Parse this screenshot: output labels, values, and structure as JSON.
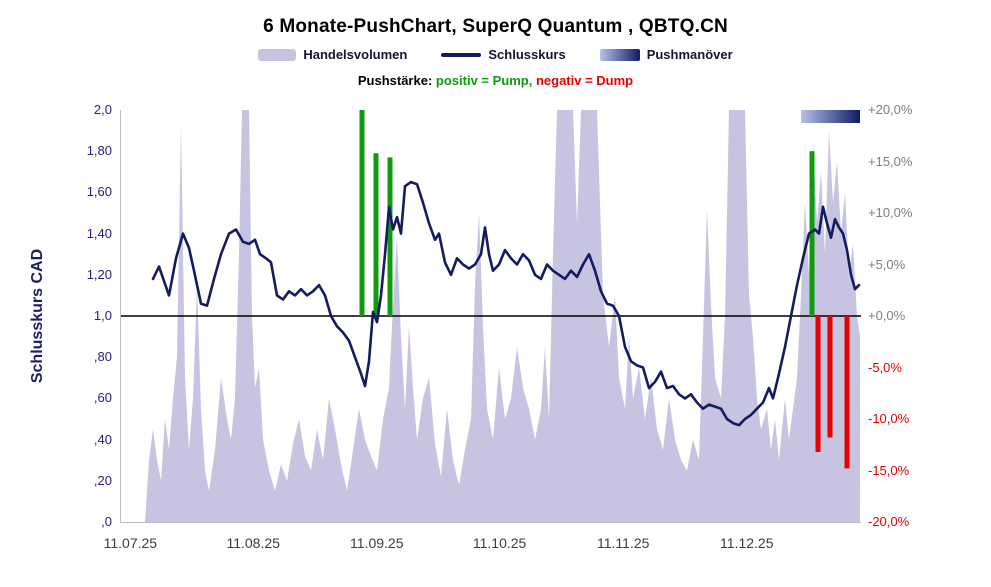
{
  "title": "6 Monate-PushChart, SuperQ Quantum , QBTQ.CN",
  "legend": {
    "volume_label": "Handelsvolumen",
    "close_label": "Schlusskurs",
    "push_label": "Pushmanöver",
    "pushstrength_label": "Pushstärke:",
    "pump_label": "positiv = Pump,",
    "dump_label": "negativ = Dump"
  },
  "chart_data": {
    "type": "area",
    "title": "6 Monate-PushChart, SuperQ Quantum , QBTQ.CN",
    "baseline": 1.0,
    "left_axis": {
      "title": "Schlusskurs CAD",
      "min": 0,
      "max": 2,
      "ticks": [
        "2,0",
        "1,80",
        "1,60",
        "1,40",
        "1,20",
        "1,0",
        ",80",
        ",60",
        ",40",
        ",20",
        ",0"
      ]
    },
    "right_axis": {
      "min": -20,
      "max": 20,
      "ticks": [
        "+20,0%",
        "+15,0%",
        "+10,0%",
        "+5,0%",
        "+0,0%",
        "-5,0%",
        "-10,0%",
        "-15,0%",
        "-20,0%"
      ]
    },
    "x_axis": {
      "ticks": [
        "11.07.25",
        "11.08.25",
        "11.09.25",
        "11.10.25",
        "11.11.25",
        "11.12.25"
      ],
      "positions": [
        0.014,
        0.18,
        0.347,
        0.513,
        0.68,
        0.847
      ]
    },
    "series": {
      "volume": {
        "name": "Handelsvolumen",
        "type": "area",
        "color": "#c6c4e1",
        "points": [
          [
            24,
            0
          ],
          [
            28,
            0.3
          ],
          [
            32,
            0.45
          ],
          [
            36,
            0.3
          ],
          [
            40,
            0.2
          ],
          [
            44,
            0.5
          ],
          [
            48,
            0.35
          ],
          [
            52,
            0.6
          ],
          [
            56,
            0.8
          ],
          [
            60,
            1.93
          ],
          [
            64,
            0.7
          ],
          [
            68,
            0.35
          ],
          [
            72,
            0.6
          ],
          [
            76,
            1.15
          ],
          [
            80,
            0.55
          ],
          [
            84,
            0.25
          ],
          [
            88,
            0.15
          ],
          [
            94,
            0.35
          ],
          [
            100,
            0.7
          ],
          [
            106,
            0.5
          ],
          [
            110,
            0.4
          ],
          [
            114,
            0.6
          ],
          [
            118,
            1.3
          ],
          [
            121,
            2
          ],
          [
            128,
            2
          ],
          [
            131,
            1
          ],
          [
            134,
            0.65
          ],
          [
            138,
            0.75
          ],
          [
            142,
            0.4
          ],
          [
            148,
            0.25
          ],
          [
            154,
            0.15
          ],
          [
            160,
            0.28
          ],
          [
            166,
            0.2
          ],
          [
            172,
            0.38
          ],
          [
            178,
            0.5
          ],
          [
            184,
            0.32
          ],
          [
            190,
            0.25
          ],
          [
            196,
            0.45
          ],
          [
            202,
            0.3
          ],
          [
            208,
            0.6
          ],
          [
            214,
            0.45
          ],
          [
            220,
            0.28
          ],
          [
            226,
            0.15
          ],
          [
            232,
            0.35
          ],
          [
            238,
            0.55
          ],
          [
            244,
            0.4
          ],
          [
            250,
            0.32
          ],
          [
            256,
            0.25
          ],
          [
            262,
            0.5
          ],
          [
            268,
            0.65
          ],
          [
            272,
            1.05
          ],
          [
            276,
            1.38
          ],
          [
            280,
            0.9
          ],
          [
            284,
            0.55
          ],
          [
            288,
            0.95
          ],
          [
            292,
            0.65
          ],
          [
            296,
            0.4
          ],
          [
            302,
            0.6
          ],
          [
            308,
            0.7
          ],
          [
            314,
            0.38
          ],
          [
            320,
            0.22
          ],
          [
            326,
            0.55
          ],
          [
            332,
            0.3
          ],
          [
            338,
            0.18
          ],
          [
            344,
            0.35
          ],
          [
            350,
            0.5
          ],
          [
            354,
            1.15
          ],
          [
            358,
            1.5
          ],
          [
            362,
            0.95
          ],
          [
            366,
            0.55
          ],
          [
            372,
            0.4
          ],
          [
            378,
            0.75
          ],
          [
            384,
            0.5
          ],
          [
            390,
            0.6
          ],
          [
            396,
            0.85
          ],
          [
            402,
            0.65
          ],
          [
            408,
            0.55
          ],
          [
            414,
            0.4
          ],
          [
            420,
            0.55
          ],
          [
            424,
            0.85
          ],
          [
            428,
            0.5
          ],
          [
            432,
            1.3
          ],
          [
            436,
            2
          ],
          [
            452,
            2
          ],
          [
            456,
            1.45
          ],
          [
            460,
            2
          ],
          [
            476,
            2
          ],
          [
            482,
            1.1
          ],
          [
            488,
            0.85
          ],
          [
            494,
            1.1
          ],
          [
            498,
            0.7
          ],
          [
            504,
            0.55
          ],
          [
            508,
            0.9
          ],
          [
            512,
            0.6
          ],
          [
            518,
            0.75
          ],
          [
            524,
            0.5
          ],
          [
            530,
            0.7
          ],
          [
            536,
            0.45
          ],
          [
            542,
            0.35
          ],
          [
            548,
            0.6
          ],
          [
            554,
            0.4
          ],
          [
            560,
            0.3
          ],
          [
            566,
            0.25
          ],
          [
            572,
            0.4
          ],
          [
            578,
            0.3
          ],
          [
            582,
            0.9
          ],
          [
            586,
            1.52
          ],
          [
            590,
            1.05
          ],
          [
            594,
            0.7
          ],
          [
            600,
            0.6
          ],
          [
            604,
            1
          ],
          [
            608,
            2
          ],
          [
            624,
            2
          ],
          [
            628,
            1.1
          ],
          [
            632,
            0.9
          ],
          [
            636,
            0.6
          ],
          [
            640,
            0.45
          ],
          [
            646,
            0.55
          ],
          [
            650,
            0.35
          ],
          [
            654,
            0.5
          ],
          [
            658,
            0.3
          ],
          [
            664,
            0.6
          ],
          [
            668,
            0.4
          ],
          [
            672,
            0.55
          ],
          [
            676,
            0.7
          ],
          [
            680,
            1.1
          ],
          [
            684,
            1.55
          ],
          [
            688,
            1.2
          ],
          [
            692,
            1.85
          ],
          [
            696,
            1.45
          ],
          [
            700,
            1.7
          ],
          [
            704,
            1.3
          ],
          [
            708,
            1.9
          ],
          [
            712,
            1.55
          ],
          [
            716,
            1.75
          ],
          [
            720,
            1.4
          ],
          [
            724,
            1.6
          ],
          [
            728,
            1.2
          ],
          [
            732,
            1.35
          ],
          [
            736,
            1
          ],
          [
            739,
            0.9
          ]
        ]
      },
      "close": {
        "name": "Schlusskurs",
        "type": "line",
        "color": "#141b5e",
        "points": [
          [
            32,
            1.18
          ],
          [
            38,
            1.24
          ],
          [
            43,
            1.17
          ],
          [
            48,
            1.1
          ],
          [
            55,
            1.28
          ],
          [
            62,
            1.4
          ],
          [
            68,
            1.33
          ],
          [
            73,
            1.22
          ],
          [
            80,
            1.06
          ],
          [
            86,
            1.05
          ],
          [
            93,
            1.18
          ],
          [
            100,
            1.3
          ],
          [
            108,
            1.4
          ],
          [
            115,
            1.42
          ],
          [
            122,
            1.36
          ],
          [
            128,
            1.35
          ],
          [
            134,
            1.37
          ],
          [
            139,
            1.3
          ],
          [
            145,
            1.28
          ],
          [
            150,
            1.26
          ],
          [
            156,
            1.1
          ],
          [
            162,
            1.08
          ],
          [
            168,
            1.12
          ],
          [
            174,
            1.1
          ],
          [
            180,
            1.13
          ],
          [
            186,
            1.1
          ],
          [
            192,
            1.12
          ],
          [
            198,
            1.15
          ],
          [
            204,
            1.1
          ],
          [
            210,
            1
          ],
          [
            216,
            0.95
          ],
          [
            222,
            0.92
          ],
          [
            228,
            0.88
          ],
          [
            234,
            0.8
          ],
          [
            240,
            0.72
          ],
          [
            244,
            0.66
          ],
          [
            248,
            0.78
          ],
          [
            252,
            1.02
          ],
          [
            256,
            0.97
          ],
          [
            260,
            1.1
          ],
          [
            264,
            1.3
          ],
          [
            268,
            1.53
          ],
          [
            272,
            1.42
          ],
          [
            276,
            1.48
          ],
          [
            280,
            1.4
          ],
          [
            284,
            1.63
          ],
          [
            290,
            1.65
          ],
          [
            296,
            1.64
          ],
          [
            302,
            1.55
          ],
          [
            308,
            1.45
          ],
          [
            314,
            1.37
          ],
          [
            318,
            1.4
          ],
          [
            324,
            1.26
          ],
          [
            330,
            1.2
          ],
          [
            336,
            1.28
          ],
          [
            342,
            1.25
          ],
          [
            348,
            1.23
          ],
          [
            354,
            1.25
          ],
          [
            360,
            1.3
          ],
          [
            364,
            1.43
          ],
          [
            368,
            1.3
          ],
          [
            372,
            1.22
          ],
          [
            378,
            1.25
          ],
          [
            384,
            1.32
          ],
          [
            390,
            1.28
          ],
          [
            396,
            1.25
          ],
          [
            402,
            1.3
          ],
          [
            408,
            1.27
          ],
          [
            414,
            1.2
          ],
          [
            420,
            1.18
          ],
          [
            426,
            1.25
          ],
          [
            432,
            1.22
          ],
          [
            438,
            1.2
          ],
          [
            444,
            1.18
          ],
          [
            450,
            1.22
          ],
          [
            456,
            1.19
          ],
          [
            462,
            1.25
          ],
          [
            468,
            1.3
          ],
          [
            474,
            1.22
          ],
          [
            480,
            1.12
          ],
          [
            486,
            1.06
          ],
          [
            492,
            1.05
          ],
          [
            498,
            1
          ],
          [
            504,
            0.85
          ],
          [
            510,
            0.78
          ],
          [
            516,
            0.76
          ],
          [
            522,
            0.75
          ],
          [
            528,
            0.65
          ],
          [
            534,
            0.68
          ],
          [
            540,
            0.73
          ],
          [
            546,
            0.65
          ],
          [
            552,
            0.66
          ],
          [
            558,
            0.62
          ],
          [
            564,
            0.6
          ],
          [
            570,
            0.62
          ],
          [
            576,
            0.58
          ],
          [
            582,
            0.55
          ],
          [
            588,
            0.57
          ],
          [
            594,
            0.56
          ],
          [
            600,
            0.55
          ],
          [
            606,
            0.5
          ],
          [
            612,
            0.48
          ],
          [
            618,
            0.47
          ],
          [
            624,
            0.5
          ],
          [
            630,
            0.52
          ],
          [
            636,
            0.55
          ],
          [
            642,
            0.58
          ],
          [
            648,
            0.65
          ],
          [
            652,
            0.6
          ],
          [
            658,
            0.72
          ],
          [
            664,
            0.85
          ],
          [
            670,
            1
          ],
          [
            676,
            1.15
          ],
          [
            682,
            1.28
          ],
          [
            688,
            1.4
          ],
          [
            694,
            1.42
          ],
          [
            698,
            1.4
          ],
          [
            702,
            1.53
          ],
          [
            706,
            1.45
          ],
          [
            710,
            1.38
          ],
          [
            714,
            1.47
          ],
          [
            718,
            1.43
          ],
          [
            722,
            1.4
          ],
          [
            726,
            1.32
          ],
          [
            730,
            1.2
          ],
          [
            734,
            1.13
          ],
          [
            738,
            1.15
          ]
        ]
      },
      "pump": {
        "name": "Pump",
        "type": "bars",
        "color": "#0f9a0f",
        "bars": [
          [
            241,
            2.0
          ],
          [
            255,
            1.79
          ],
          [
            269,
            1.77
          ],
          [
            691,
            1.8
          ]
        ]
      },
      "dump": {
        "name": "Dump",
        "type": "bars",
        "color": "#e60000",
        "bars": [
          [
            697,
            0.34
          ],
          [
            709,
            0.41
          ],
          [
            726,
            0.26
          ]
        ]
      },
      "push_bar": {
        "name": "Pushmanöver",
        "x0": 680,
        "x1": 739,
        "color_from": "#b6c1e9",
        "color_to": "#101c64"
      }
    }
  }
}
